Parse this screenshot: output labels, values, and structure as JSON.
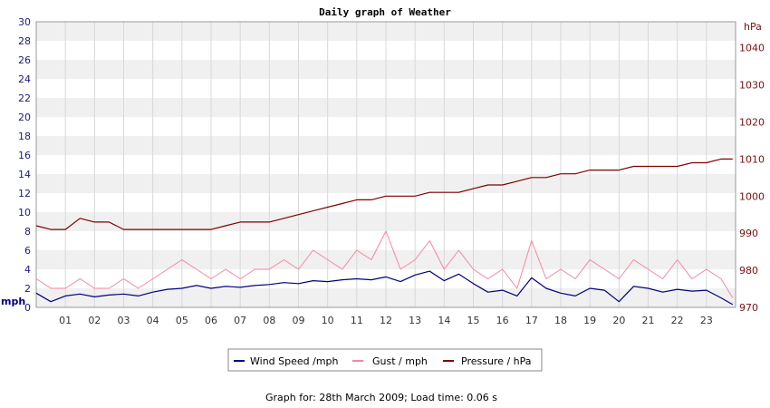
{
  "chart_data": {
    "type": "line",
    "title": "Daily graph of Weather",
    "ylabel_left": "mph",
    "ylabel_right": "hPa",
    "ylim_left": [
      0,
      30
    ],
    "ylim_right": [
      970,
      1047
    ],
    "left_ticks": [
      0,
      2,
      4,
      6,
      8,
      10,
      12,
      14,
      16,
      18,
      20,
      22,
      24,
      26,
      28,
      30
    ],
    "right_ticks": [
      970,
      980,
      990,
      1000,
      1010,
      1020,
      1030,
      1040
    ],
    "x_ticks": [
      "01",
      "02",
      "03",
      "04",
      "05",
      "06",
      "07",
      "08",
      "09",
      "10",
      "11",
      "12",
      "13",
      "14",
      "15",
      "16",
      "17",
      "18",
      "19",
      "20",
      "21",
      "22",
      "23"
    ],
    "grid": true,
    "legend_position": "bottom",
    "x_hours": [
      0,
      0.5,
      1,
      1.5,
      2,
      2.5,
      3,
      3.5,
      4,
      4.5,
      5,
      5.5,
      6,
      6.5,
      7,
      7.5,
      8,
      8.5,
      9,
      9.5,
      10,
      10.5,
      11,
      11.5,
      12,
      12.5,
      13,
      13.5,
      14,
      14.5,
      15,
      15.5,
      16,
      16.5,
      17,
      17.5,
      18,
      18.5,
      19,
      19.5,
      20,
      20.5,
      21,
      21.5,
      22,
      22.5,
      23,
      23.5,
      23.9
    ],
    "series": [
      {
        "name": "Wind Speed /mph",
        "axis": "left",
        "color": "#000080",
        "values": [
          1.5,
          0.6,
          1.2,
          1.4,
          1.1,
          1.3,
          1.4,
          1.2,
          1.6,
          1.9,
          2.0,
          2.3,
          2.0,
          2.2,
          2.1,
          2.3,
          2.4,
          2.6,
          2.5,
          2.8,
          2.7,
          2.9,
          3.0,
          2.9,
          3.2,
          2.7,
          3.4,
          3.8,
          2.8,
          3.5,
          2.5,
          1.6,
          1.8,
          1.2,
          3.1,
          2.0,
          1.5,
          1.2,
          2.0,
          1.8,
          0.6,
          2.2,
          2.0,
          1.6,
          1.9,
          1.7,
          1.8,
          1.0,
          0.3
        ]
      },
      {
        "name": "Gust / mph",
        "axis": "left",
        "color": "#f7869f",
        "values": [
          3,
          2,
          2,
          3,
          2,
          2,
          3,
          2,
          3,
          4,
          5,
          4,
          3,
          4,
          3,
          4,
          4,
          5,
          4,
          6,
          5,
          4,
          6,
          5,
          8,
          4,
          5,
          7,
          4,
          6,
          4,
          3,
          4,
          2,
          7,
          3,
          4,
          3,
          5,
          4,
          3,
          5,
          4,
          3,
          5,
          3,
          4,
          3,
          1
        ]
      },
      {
        "name": "Pressure / hPa",
        "axis": "right",
        "color": "#800000",
        "values": [
          992,
          991,
          991,
          994,
          993,
          993,
          991,
          991,
          991,
          991,
          991,
          991,
          991,
          992,
          993,
          993,
          993,
          994,
          995,
          996,
          997,
          998,
          999,
          999,
          1000,
          1000,
          1000,
          1001,
          1001,
          1001,
          1002,
          1003,
          1003,
          1004,
          1005,
          1005,
          1006,
          1006,
          1007,
          1007,
          1007,
          1008,
          1008,
          1008,
          1008,
          1009,
          1009,
          1010,
          1010
        ]
      }
    ]
  },
  "footer": {
    "text": "Graph for: 28th March 2009; Load time: 0.06 s"
  }
}
